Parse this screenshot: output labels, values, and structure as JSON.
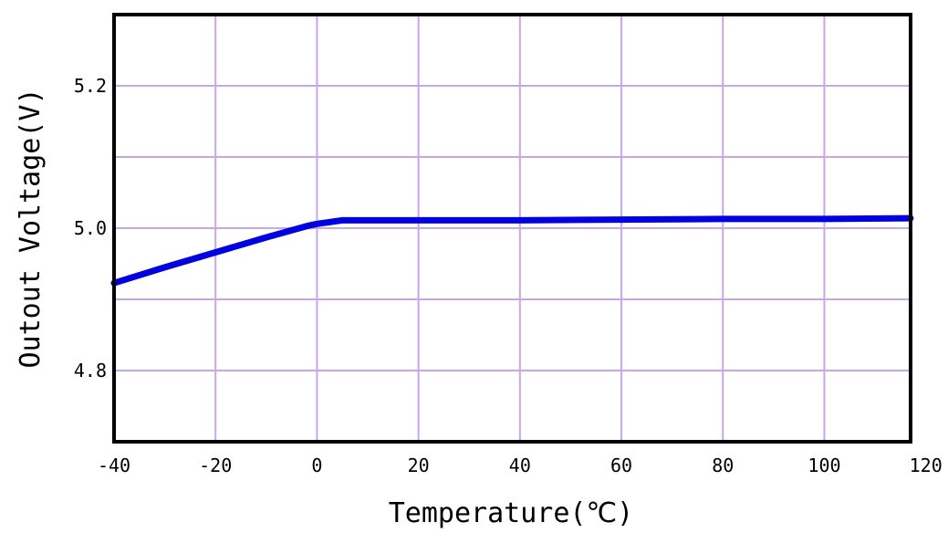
{
  "chart_data": {
    "type": "line",
    "title": "",
    "xlabel": "Temperature(℃)",
    "ylabel": "Outout Voltage(V)",
    "xlim": [
      -40,
      117
    ],
    "ylim": [
      4.7,
      5.3
    ],
    "x_ticks": [
      -40,
      -20,
      0,
      20,
      40,
      60,
      80,
      100,
      120
    ],
    "y_ticks": [
      4.8,
      5.0,
      5.2
    ],
    "y_tick_labels": [
      "4.8",
      "5.0",
      "5.2"
    ],
    "grid": true,
    "colors": {
      "line": "#0000e0",
      "grid": "#c9a6e6",
      "frame": "#000000"
    },
    "series": [
      {
        "x": [
          -40,
          -30,
          -20,
          -10,
          -2,
          0,
          5,
          20,
          40,
          60,
          80,
          100,
          117
        ],
        "y": [
          4.923,
          4.945,
          4.966,
          4.987,
          5.003,
          5.006,
          5.011,
          5.011,
          5.011,
          5.012,
          5.013,
          5.013,
          5.014
        ]
      }
    ]
  }
}
